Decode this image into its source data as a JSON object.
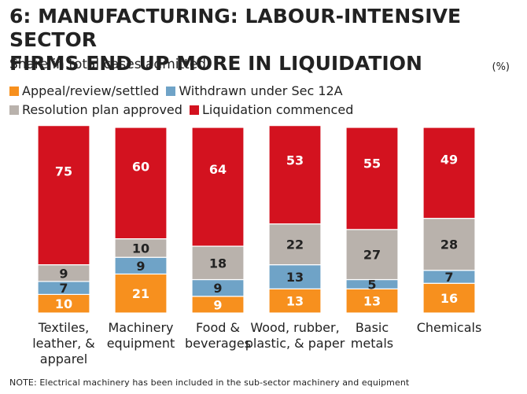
{
  "title_lines": [
    "6: MANUFACTURING: LABOUR-INTENSIVE SECTOR",
    "FIRMS END UP MORE IN LIQUIDATION"
  ],
  "subtitle": "Share in total cases admitted",
  "unit": "(%)",
  "footnote": "NOTE: Electrical machinery has been included in the sub-sector machinery and equipment",
  "colors": {
    "appeal": "#f7901e",
    "withdrawn": "#6fa3c7",
    "resolution": "#b9b2ac",
    "liquidation": "#d3121f"
  },
  "chart_data": {
    "type": "bar",
    "stacked": true,
    "ylim": [
      0,
      100
    ],
    "grid": false,
    "legend_position": "top",
    "categories": [
      [
        "Textiles,",
        "leather, &",
        "apparel"
      ],
      [
        "Machinery",
        "equipment"
      ],
      [
        "Food &",
        "beverages"
      ],
      [
        "Wood, rubber,",
        "plastic, & paper"
      ],
      [
        "Basic",
        "metals"
      ],
      [
        "Chemicals"
      ]
    ],
    "series": [
      {
        "name": "Appeal/review/settled",
        "key": "appeal",
        "values": [
          10,
          21,
          9,
          13,
          13,
          16
        ]
      },
      {
        "name": "Withdrawn under Sec 12A",
        "key": "withdrawn",
        "values": [
          7,
          9,
          9,
          13,
          5,
          7
        ]
      },
      {
        "name": "Resolution plan approved",
        "key": "resolution",
        "values": [
          9,
          10,
          18,
          22,
          27,
          28
        ]
      },
      {
        "name": "Liquidation commenced",
        "key": "liquidation",
        "values": [
          75,
          60,
          64,
          53,
          55,
          49
        ]
      }
    ]
  }
}
